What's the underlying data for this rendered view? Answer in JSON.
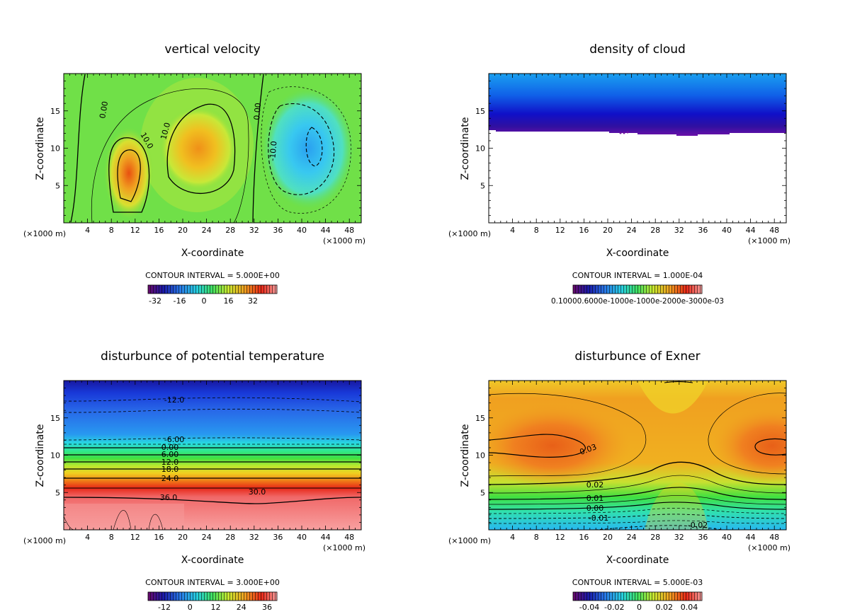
{
  "chart_data": [
    {
      "type": "heatmap",
      "title": "vertical velocity",
      "xlabel": "X-coordinate",
      "ylabel": "Z-coordinate",
      "x_unit": "(×1000 m)",
      "x_ticks": [
        "4",
        "8",
        "12",
        "16",
        "20",
        "24",
        "28",
        "32",
        "36",
        "40",
        "44",
        "48"
      ],
      "y_ticks": [
        "5",
        "10",
        "15"
      ],
      "xlim": [
        0,
        50
      ],
      "ylim": [
        0,
        20
      ],
      "contour_interval": "CONTOUR INTERVAL = 5.000E+00",
      "colorbar_ticks": [
        "-32",
        "-16",
        "0",
        "16",
        "32"
      ],
      "contour_labels": [
        {
          "text": "0.00",
          "x": 7,
          "z": 16
        },
        {
          "text": "10.0",
          "x": 13.5,
          "z": 11
        },
        {
          "text": "10.0",
          "x": 17.5,
          "z": 14
        },
        {
          "text": "0.00",
          "x": 32,
          "z": 16
        },
        {
          "text": "-10.0",
          "x": 35,
          "z": 9
        }
      ]
    },
    {
      "type": "heatmap",
      "title": "density of cloud",
      "xlabel": "X-coordinate",
      "ylabel": "Z-coordinate",
      "x_unit": "(×1000 m)",
      "x_ticks": [
        "4",
        "8",
        "12",
        "16",
        "20",
        "24",
        "28",
        "32",
        "36",
        "40",
        "44",
        "48"
      ],
      "y_ticks": [
        "5",
        "10",
        "15"
      ],
      "xlim": [
        0,
        50
      ],
      "ylim": [
        0,
        20
      ],
      "contour_interval": "CONTOUR INTERVAL = 1.000E-04",
      "colorbar_ticks_text": "0.10000.6000e-1000e-1000e-2000e-3000e-03",
      "cloud_base_z": 12
    },
    {
      "type": "heatmap",
      "title": "disturbunce of potential temperature",
      "xlabel": "X-coordinate",
      "ylabel": "Z-coordinate",
      "x_unit": "(×1000 m)",
      "x_ticks": [
        "4",
        "8",
        "12",
        "16",
        "20",
        "24",
        "28",
        "32",
        "36",
        "40",
        "44",
        "48"
      ],
      "y_ticks": [
        "5",
        "10",
        "15"
      ],
      "xlim": [
        0,
        50
      ],
      "ylim": [
        0,
        20
      ],
      "contour_interval": "CONTOUR INTERVAL = 3.000E+00",
      "colorbar_ticks": [
        "-12",
        "0",
        "12",
        "24",
        "36"
      ],
      "contour_labels": [
        {
          "text": "-12.0",
          "x": 18.5,
          "z": 17
        },
        {
          "text": "-6.00",
          "x": 18.5,
          "z": 11.8
        },
        {
          "text": "0.00",
          "x": 18,
          "z": 10.8
        },
        {
          "text": "6.00",
          "x": 18,
          "z": 9.9
        },
        {
          "text": "12.0",
          "x": 18,
          "z": 8.9
        },
        {
          "text": "18.0",
          "x": 18,
          "z": 7.9
        },
        {
          "text": "24.0",
          "x": 18,
          "z": 6.8
        },
        {
          "text": "30.0",
          "x": 32.5,
          "z": 5.2
        },
        {
          "text": "36.0",
          "x": 17.5,
          "z": 4.2
        }
      ]
    },
    {
      "type": "heatmap",
      "title": "disturbunce of Exner",
      "xlabel": "X-coordinate",
      "ylabel": "Z-coordinate",
      "x_unit": "(×1000 m)",
      "x_ticks": [
        "4",
        "8",
        "12",
        "16",
        "20",
        "24",
        "28",
        "32",
        "36",
        "40",
        "44",
        "48"
      ],
      "y_ticks": [
        "5",
        "10",
        "15"
      ],
      "xlim": [
        0,
        50
      ],
      "ylim": [
        0,
        20
      ],
      "contour_interval": "CONTOUR INTERVAL = 5.000E-03",
      "colorbar_ticks": [
        "-0.04",
        "-0.02",
        "0",
        "0.02",
        "0.04"
      ],
      "contour_labels": [
        {
          "text": "0.03",
          "x": 16.5,
          "z": 10.5
        },
        {
          "text": "0.02",
          "x": 17.5,
          "z": 6.0
        },
        {
          "text": "0.01",
          "x": 17.5,
          "z": 4.3
        },
        {
          "text": "0.00",
          "x": 17.5,
          "z": 2.9
        },
        {
          "text": "-0.01",
          "x": 17.5,
          "z": 1.6
        },
        {
          "text": "-0.02",
          "x": 33,
          "z": 0.5
        }
      ]
    }
  ]
}
